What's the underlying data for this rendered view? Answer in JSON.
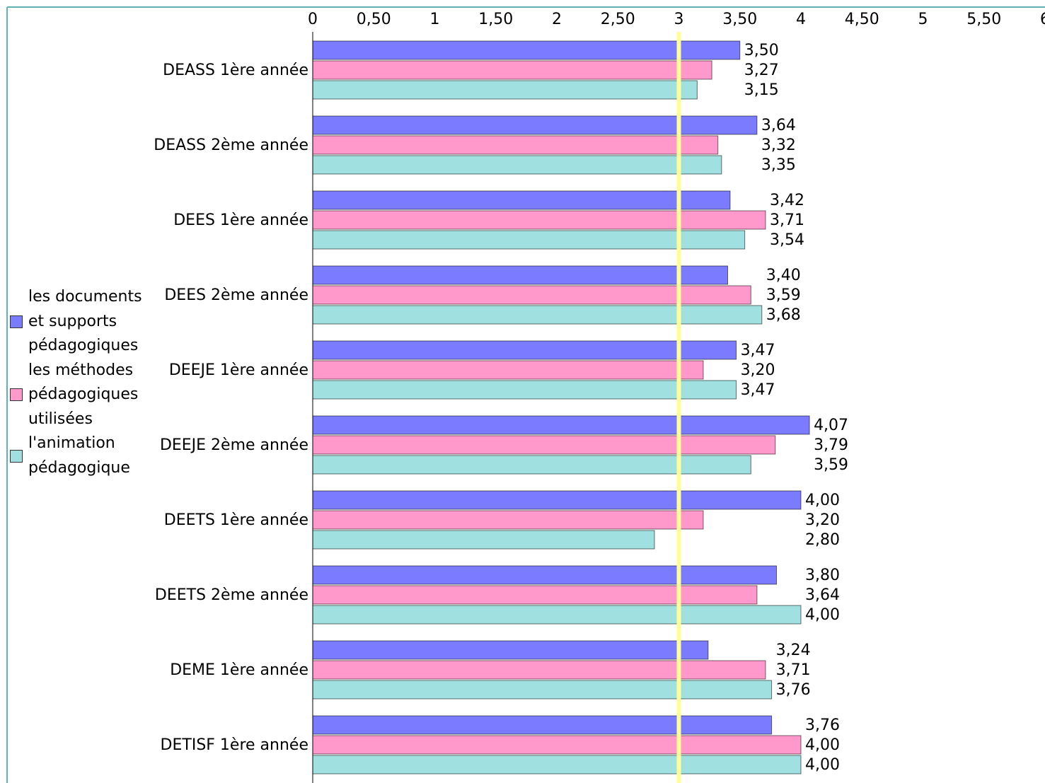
{
  "chart_data": {
    "type": "bar",
    "orientation": "horizontal",
    "categories": [
      "DEASS 1ère année",
      "DEASS 2ème année",
      "DEES 1ère année",
      "DEES 2ème année",
      "DEEJE 1ère année",
      "DEEJE 2ème année",
      "DEETS 1ère année",
      "DEETS 2ème année",
      "DEME 1ère année",
      "DETISF 1ère année"
    ],
    "series": [
      {
        "name": "les documents et supports pédagogiques",
        "color": "#7b7bff",
        "values": [
          3.5,
          3.64,
          3.42,
          3.4,
          3.47,
          4.07,
          4.0,
          3.8,
          3.24,
          3.76
        ],
        "value_labels": [
          "3,50",
          "3,64",
          "3,42",
          "3,40",
          "3,47",
          "4,07",
          "4,00",
          "3,80",
          "3,24",
          "3,76"
        ]
      },
      {
        "name": "les méthodes pédagogiques utilisées",
        "color": "#ff99cc",
        "values": [
          3.27,
          3.32,
          3.71,
          3.59,
          3.2,
          3.79,
          3.2,
          3.64,
          3.71,
          4.0
        ],
        "value_labels": [
          "3,27",
          "3,32",
          "3,71",
          "3,59",
          "3,20",
          "3,79",
          "3,20",
          "3,64",
          "3,71",
          "4,00"
        ]
      },
      {
        "name": "l'animation pédagogique",
        "color": "#a0e0e0",
        "values": [
          3.15,
          3.35,
          3.54,
          3.68,
          3.47,
          3.59,
          2.8,
          4.0,
          3.76,
          4.0
        ],
        "value_labels": [
          "3,15",
          "3,35",
          "3,54",
          "3,68",
          "3,47",
          "3,59",
          "2,80",
          "4,00",
          "3,76",
          "4,00"
        ]
      }
    ],
    "xlim": [
      0,
      6
    ],
    "xticks": [
      0,
      {
        "value": 0.5,
        "label": "0,50"
      },
      1,
      {
        "value": 1.5,
        "label": "1,50"
      },
      2,
      {
        "value": 2.5,
        "label": "2,50"
      },
      3,
      {
        "value": 3.5,
        "label": "3,50"
      },
      4,
      {
        "value": 4.5,
        "label": "4,50"
      },
      5,
      {
        "value": 5.5,
        "label": "5,50"
      },
      6
    ],
    "reference_line": {
      "value": 3,
      "color": "#ffff99"
    },
    "legend": "left"
  }
}
